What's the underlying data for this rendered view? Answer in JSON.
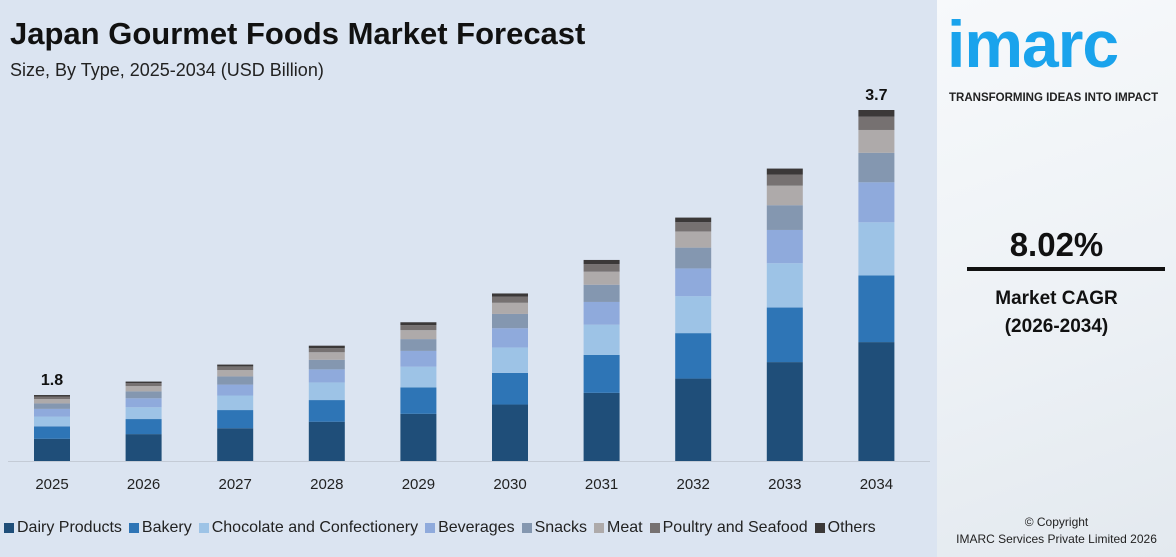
{
  "header": {
    "title": "Japan Gourmet Foods Market Forecast",
    "subtitle": "Size, By Type, 2025-2034 (USD Billion)"
  },
  "brand": {
    "logo": "imarc",
    "tagline": "TRANSFORMING IDEAS INTO IMPACT",
    "color": "#1aa3ec"
  },
  "cagr": {
    "value": "8.02%",
    "label": "Market CAGR",
    "period": "(2026-2034)"
  },
  "copyright": {
    "line1": "© Copyright",
    "line2": "IMARC Services Private Limited 2026"
  },
  "chart_data": {
    "type": "bar",
    "stacked": true,
    "title": "Japan Gourmet Foods Market Forecast",
    "subtitle": "Size, By Type, 2025-2034 (USD Billion)",
    "categories": [
      "2025",
      "2026",
      "2027",
      "2028",
      "2029",
      "2030",
      "2031",
      "2032",
      "2033",
      "2034"
    ],
    "totals": [
      1.8,
      1.95,
      2.12,
      2.29,
      2.48,
      2.69,
      2.91,
      3.16,
      3.42,
      3.7
    ],
    "data_labels": {
      "2025": "1.8",
      "2034": "3.7"
    },
    "legend": "bottom",
    "grid": false,
    "series": [
      {
        "name": "Dairy Products",
        "color": "#1f4e79",
        "values": [
          0.61,
          0.66,
          0.72,
          0.78,
          0.84,
          0.91,
          0.99,
          1.07,
          1.16,
          1.25
        ]
      },
      {
        "name": "Bakery",
        "color": "#2e75b6",
        "values": [
          0.34,
          0.37,
          0.4,
          0.43,
          0.47,
          0.51,
          0.55,
          0.59,
          0.64,
          0.7
        ]
      },
      {
        "name": "Chocolate and Confectionery",
        "color": "#9dc3e6",
        "values": [
          0.27,
          0.29,
          0.32,
          0.35,
          0.37,
          0.41,
          0.44,
          0.48,
          0.52,
          0.56
        ]
      },
      {
        "name": "Beverages",
        "color": "#8faadc",
        "values": [
          0.21,
          0.22,
          0.24,
          0.26,
          0.28,
          0.31,
          0.33,
          0.36,
          0.39,
          0.42
        ]
      },
      {
        "name": "Snacks",
        "color": "#8497b0",
        "values": [
          0.15,
          0.17,
          0.18,
          0.19,
          0.21,
          0.23,
          0.25,
          0.27,
          0.29,
          0.31
        ]
      },
      {
        "name": "Meat",
        "color": "#aeaaaa",
        "values": [
          0.12,
          0.13,
          0.14,
          0.15,
          0.16,
          0.18,
          0.19,
          0.21,
          0.23,
          0.24
        ]
      },
      {
        "name": "Poultry and Seafood",
        "color": "#767171",
        "values": [
          0.07,
          0.07,
          0.08,
          0.08,
          0.09,
          0.1,
          0.11,
          0.12,
          0.13,
          0.14
        ]
      },
      {
        "name": "Others",
        "color": "#3b3838",
        "values": [
          0.04,
          0.04,
          0.04,
          0.05,
          0.05,
          0.05,
          0.06,
          0.06,
          0.07,
          0.07
        ]
      }
    ]
  }
}
